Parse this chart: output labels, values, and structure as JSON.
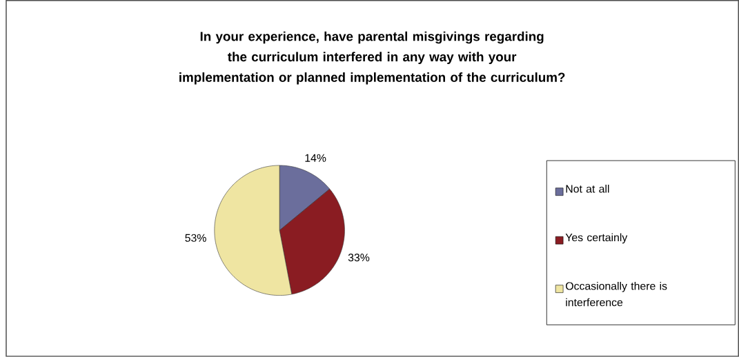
{
  "chart_data": {
    "type": "pie",
    "title": "In your experience, have parental misgivings regarding the curriculum interfered in any way with your implementation or planned implementation of the curriculum?",
    "categories": [
      "Not at all",
      "Yes certainly",
      "Occasionally there is interference"
    ],
    "values": [
      14,
      33,
      53
    ],
    "colors": [
      "#6b6e9c",
      "#8a1c22",
      "#efe5a2"
    ],
    "value_labels": [
      "14%",
      "33%",
      "53%"
    ],
    "legend": "right"
  }
}
